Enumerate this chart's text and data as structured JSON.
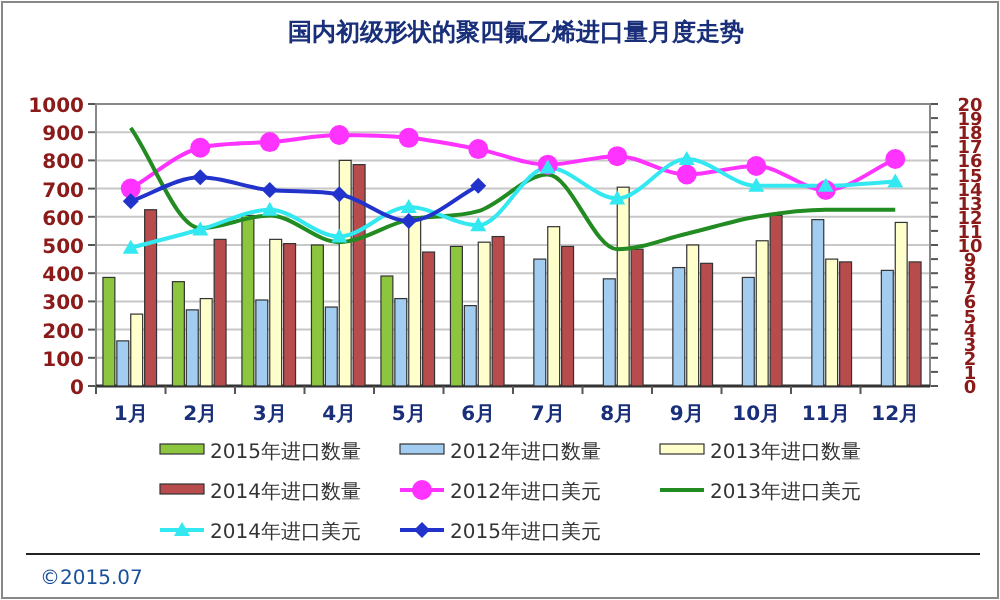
{
  "chart_data": {
    "type": "bar",
    "title": "国内初级形状的聚四氟乙烯进口量月度走势",
    "categories": [
      "1月",
      "2月",
      "3月",
      "4月",
      "5月",
      "6月",
      "7月",
      "8月",
      "9月",
      "10月",
      "11月",
      "12月"
    ],
    "series": [
      {
        "name": "2015年进口数量",
        "color": "#8cc63f",
        "values": [
          385,
          370,
          605,
          500,
          390,
          495,
          null,
          null,
          null,
          null,
          null,
          null
        ]
      },
      {
        "name": "2012年进口数量",
        "color": "#a3cdf0",
        "values": [
          160,
          270,
          305,
          280,
          310,
          285,
          450,
          380,
          420,
          385,
          590,
          410
        ]
      },
      {
        "name": "2013年进口数量",
        "color": "#ffffcc",
        "values": [
          255,
          310,
          520,
          800,
          600,
          510,
          565,
          705,
          500,
          515,
          450,
          580
        ]
      },
      {
        "name": "2014年进口数量",
        "color": "#b84c4c",
        "values": [
          625,
          520,
          505,
          785,
          475,
          530,
          495,
          485,
          435,
          605,
          440,
          440
        ]
      },
      {
        "name": "2012年进口美元",
        "type": "line",
        "axis": "y2",
        "marker": "circle",
        "color": "#ff33ff",
        "values": [
          14,
          16.9,
          17.3,
          17.8,
          17.6,
          16.8,
          15.7,
          16.3,
          15.0,
          15.6,
          13.9,
          16.1
        ]
      },
      {
        "name": "2013年进口美元",
        "type": "line",
        "axis": "y2",
        "marker": "none",
        "color": "#228b22",
        "values": [
          18.3,
          11.2,
          12.1,
          10.2,
          11.8,
          12.4,
          15.0,
          9.7,
          10.8,
          12.0,
          12.5,
          12.5
        ]
      },
      {
        "name": "2014年进口美元",
        "type": "line",
        "axis": "y2",
        "marker": "triangle",
        "color": "#33e8f0",
        "values": [
          9.8,
          11.1,
          12.5,
          10.6,
          12.7,
          11.4,
          15.5,
          13.3,
          16.1,
          14.2,
          14.2,
          14.5
        ]
      },
      {
        "name": "2015年进口美元",
        "type": "line",
        "axis": "y2",
        "marker": "diamond",
        "color": "#2233cc",
        "values": [
          13.1,
          14.8,
          13.9,
          13.6,
          11.7,
          14.2,
          null,
          null,
          null,
          null,
          null,
          null
        ]
      }
    ],
    "ylim": [
      0,
      1000
    ],
    "yticks": [
      0,
      100,
      200,
      300,
      400,
      500,
      600,
      700,
      800,
      900,
      1000
    ],
    "y2lim": [
      0,
      20
    ],
    "y2ticks": [
      0,
      1,
      2,
      3,
      4,
      5,
      6,
      7,
      8,
      9,
      10,
      11,
      12,
      13,
      14,
      15,
      16,
      17,
      18,
      19,
      20
    ],
    "grid": "y",
    "legend": "bottom",
    "annotations": [
      "©2015.07"
    ]
  }
}
